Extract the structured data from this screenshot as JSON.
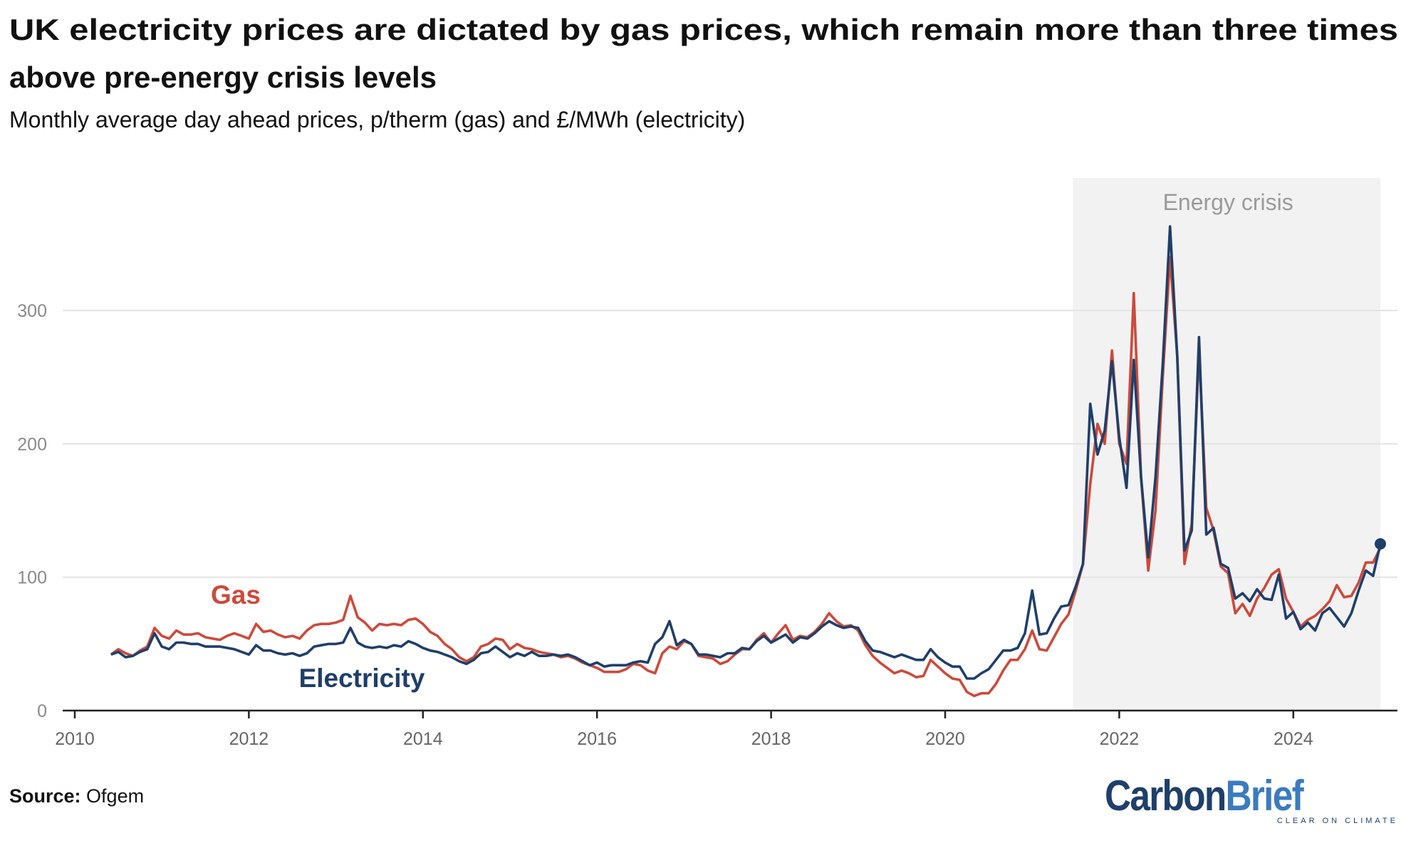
{
  "title_lines": [
    "UK electricity prices are dictated by gas prices, which remain more than three times",
    "above pre-energy crisis levels"
  ],
  "subtitle": "Monthly average day ahead prices, p/therm (gas) and £/MWh (electricity)",
  "source_label": "Source:",
  "source_value": "Ofgem",
  "logo": {
    "part1": "Carbon",
    "part2": "Brief",
    "tagline": "CLEAR ON CLIMATE"
  },
  "chart_data": {
    "type": "line",
    "title": "UK electricity prices are dictated by gas prices, which remain more than three times above pre-energy crisis levels",
    "subtitle": "Monthly average day ahead prices, p/therm (gas) and £/MWh (electricity)",
    "x_start": "2010-06",
    "x_end": "2025-01",
    "x_frequency": "monthly",
    "xlim": [
      2010,
      2025.2
    ],
    "ylim": [
      0,
      370
    ],
    "x_ticks": [
      "2010",
      "2012",
      "2014",
      "2016",
      "2018",
      "2020",
      "2022",
      "2024"
    ],
    "y_ticks": [
      "0",
      "100",
      "200",
      "300"
    ],
    "grid": "horizontal",
    "legend": "inline labels",
    "annotation": {
      "label": "Energy crisis",
      "from": "2021-07",
      "to": "2025-01"
    },
    "colors": {
      "gas": "#cc4a3b",
      "electricity": "#1f3f6a",
      "shade": "#f2f2f2",
      "grid": "#e3e3e3"
    },
    "series": [
      {
        "name": "Gas",
        "values": [
          42,
          46,
          43,
          41,
          45,
          48,
          62,
          56,
          54,
          60,
          57,
          57,
          58,
          55,
          54,
          53,
          56,
          58,
          56,
          54,
          65,
          59,
          60,
          57,
          55,
          56,
          54,
          60,
          64,
          65,
          65,
          66,
          68,
          86,
          70,
          66,
          60,
          65,
          64,
          65,
          64,
          68,
          69,
          65,
          59,
          56,
          50,
          46,
          40,
          37,
          40,
          48,
          50,
          54,
          53,
          46,
          50,
          47,
          46,
          44,
          43,
          42,
          40,
          41,
          39,
          36,
          34,
          32,
          29,
          29,
          29,
          31,
          35,
          34,
          30,
          28,
          43,
          48,
          46,
          52,
          50,
          41,
          40,
          39,
          35,
          37,
          42,
          46,
          46,
          53,
          58,
          51,
          58,
          64,
          53,
          56,
          55,
          59,
          65,
          73,
          67,
          63,
          64,
          60,
          49,
          41,
          36,
          32,
          28,
          30,
          28,
          25,
          26,
          38,
          33,
          28,
          24,
          23,
          14,
          11,
          13,
          13,
          20,
          30,
          38,
          38,
          46,
          60,
          46,
          45,
          55,
          65,
          72,
          90,
          110,
          170,
          215,
          200,
          270,
          200,
          185,
          313,
          175,
          105,
          150,
          250,
          340,
          265,
          110,
          140,
          270,
          152,
          135,
          108,
          103,
          73,
          80,
          71,
          84,
          92,
          102,
          106,
          84,
          74,
          63,
          68,
          71,
          76,
          82,
          94,
          85,
          86,
          96,
          111,
          111,
          122
        ]
      },
      {
        "name": "Electricity",
        "values": [
          42,
          44,
          40,
          41,
          44,
          46,
          58,
          48,
          46,
          51,
          51,
          50,
          50,
          48,
          48,
          48,
          47,
          46,
          44,
          42,
          49,
          45,
          45,
          43,
          42,
          43,
          41,
          43,
          48,
          49,
          50,
          50,
          51,
          62,
          51,
          48,
          47,
          48,
          47,
          49,
          48,
          52,
          50,
          47,
          45,
          44,
          42,
          40,
          37,
          35,
          38,
          43,
          44,
          48,
          44,
          40,
          43,
          41,
          44,
          41,
          41,
          42,
          41,
          42,
          40,
          37,
          34,
          36,
          33,
          34,
          34,
          34,
          36,
          37,
          36,
          50,
          55,
          67,
          49,
          53,
          50,
          42,
          42,
          41,
          40,
          43,
          43,
          47,
          46,
          52,
          56,
          51,
          54,
          57,
          51,
          55,
          54,
          58,
          63,
          67,
          64,
          62,
          63,
          62,
          52,
          45,
          44,
          42,
          40,
          42,
          40,
          38,
          38,
          46,
          40,
          36,
          33,
          33,
          24,
          24,
          28,
          31,
          38,
          45,
          45,
          47,
          58,
          90,
          57,
          58,
          69,
          78,
          79,
          93,
          110,
          230,
          192,
          210,
          262,
          205,
          167,
          263,
          175,
          115,
          175,
          260,
          363,
          265,
          120,
          135,
          280,
          132,
          137,
          110,
          107,
          84,
          88,
          82,
          91,
          84,
          83,
          102,
          69,
          74,
          61,
          66,
          60,
          73,
          77,
          70,
          63,
          73,
          90,
          105,
          101,
          125
        ]
      }
    ]
  }
}
